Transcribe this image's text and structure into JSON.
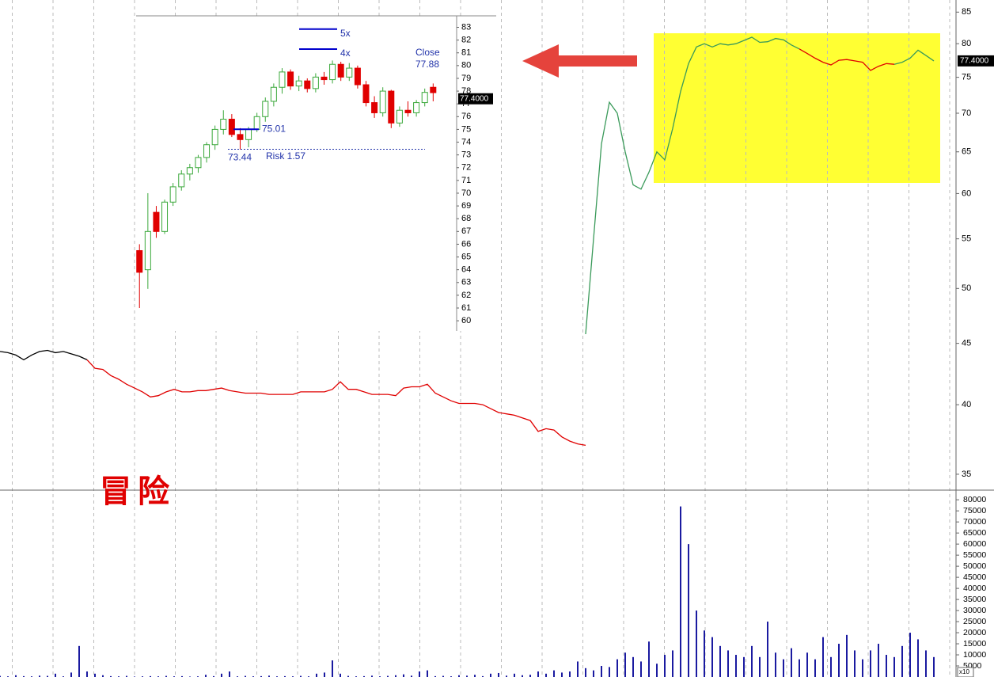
{
  "chart_data": [
    {
      "type": "line",
      "log_scale": true,
      "xlim": [
        0,
        120.8
      ],
      "ylim": [
        34,
        87
      ],
      "yticks": [
        35,
        40,
        45,
        50,
        55,
        60,
        65,
        70,
        75,
        80,
        85
      ],
      "series": [
        {
          "color": "#000000",
          "x": [
            0,
            1,
            2,
            3,
            4,
            5,
            6,
            7,
            8,
            9,
            10,
            11
          ],
          "values": [
            44.3,
            44.2,
            44.0,
            43.6,
            44.0,
            44.3,
            44.4,
            44.2,
            44.3,
            44.1,
            43.9,
            43.6
          ]
        },
        {
          "color": "#e00000",
          "x": [
            11,
            12,
            13,
            14,
            15,
            16,
            17,
            18,
            19,
            20,
            21,
            22,
            23,
            24,
            25,
            26,
            27,
            28,
            29,
            30,
            31,
            32,
            33,
            34,
            35,
            36,
            37,
            38,
            39,
            40,
            41,
            42,
            43,
            44,
            45,
            46,
            47,
            48,
            49,
            50,
            51,
            52,
            53,
            54,
            55,
            56,
            57,
            58,
            59,
            60,
            61,
            62,
            63,
            64,
            65,
            66,
            67,
            68,
            69,
            70,
            71,
            72,
            73,
            74
          ],
          "values": [
            43.6,
            42.9,
            42.8,
            42.3,
            42.0,
            41.6,
            41.3,
            41.0,
            40.6,
            40.7,
            41.0,
            41.2,
            41.0,
            41.0,
            41.1,
            41.1,
            41.2,
            41.3,
            41.1,
            41.0,
            40.9,
            40.9,
            40.9,
            40.8,
            40.8,
            40.8,
            40.8,
            41.0,
            41.0,
            41.0,
            41.0,
            41.2,
            41.8,
            41.2,
            41.2,
            41.0,
            40.8,
            40.8,
            40.8,
            40.7,
            41.3,
            41.4,
            41.4,
            41.6,
            40.9,
            40.6,
            40.3,
            40.1,
            40.1,
            40.1,
            40.0,
            39.7,
            39.4,
            39.3,
            39.2,
            39.0,
            38.8,
            38.0,
            38.2,
            38.1,
            37.6,
            37.3,
            37.1,
            37.0
          ]
        },
        {
          "color": "#3a9a5a",
          "x": [
            74,
            75,
            76,
            77,
            78,
            79,
            80,
            81,
            82,
            83,
            84,
            85,
            86,
            87,
            88,
            89,
            90,
            91,
            92,
            93,
            94,
            95,
            96,
            97,
            98,
            99,
            100,
            101
          ],
          "values": [
            45.8,
            55,
            66,
            71.5,
            70,
            65,
            61,
            60.5,
            62.5,
            65,
            64,
            68,
            73,
            77,
            79.5,
            80,
            79.5,
            80,
            79.8,
            80,
            80.5,
            81,
            80.2,
            80.3,
            80.8,
            80.6,
            79.8,
            79.2
          ]
        },
        {
          "color": "#e00000",
          "x": [
            101,
            102,
            103,
            104,
            105,
            106,
            107,
            108,
            109,
            110,
            111,
            112,
            113
          ],
          "values": [
            79.2,
            78.5,
            77.8,
            77.2,
            76.8,
            77.5,
            77.6,
            77.4,
            77.2,
            76.0,
            76.6,
            77.0,
            76.9
          ]
        },
        {
          "color": "#3a9a5a",
          "x": [
            113,
            114,
            115,
            116,
            117,
            118
          ],
          "values": [
            76.9,
            77.2,
            77.8,
            79.0,
            78.2,
            77.4
          ]
        }
      ],
      "price_label": {
        "value": 77.4,
        "label": "77.4000"
      },
      "watermark": "冒险"
    },
    {
      "type": "bar",
      "color": "#1a1aa0",
      "xlim": [
        0,
        120.8
      ],
      "ylim": [
        0,
        84000
      ],
      "yticks": [
        5000,
        10000,
        15000,
        20000,
        25000,
        30000,
        35000,
        40000,
        45000,
        50000,
        55000,
        60000,
        65000,
        70000,
        75000,
        80000
      ],
      "x": [
        0,
        1,
        2,
        3,
        4,
        5,
        6,
        7,
        8,
        9,
        10,
        11,
        12,
        13,
        14,
        15,
        16,
        17,
        18,
        19,
        20,
        21,
        22,
        23,
        24,
        25,
        26,
        27,
        28,
        29,
        30,
        31,
        32,
        33,
        34,
        35,
        36,
        37,
        38,
        39,
        40,
        41,
        42,
        43,
        44,
        45,
        46,
        47,
        48,
        49,
        50,
        51,
        52,
        53,
        54,
        55,
        56,
        57,
        58,
        59,
        60,
        61,
        62,
        63,
        64,
        65,
        66,
        67,
        68,
        69,
        70,
        71,
        72,
        73,
        74,
        75,
        76,
        77,
        78,
        79,
        80,
        81,
        82,
        83,
        84,
        85,
        86,
        87,
        88,
        89,
        90,
        91,
        92,
        93,
        94,
        95,
        96,
        97,
        98,
        99,
        100,
        101,
        102,
        103,
        104,
        105,
        106,
        107,
        108,
        109,
        110,
        111,
        112,
        113,
        114,
        115,
        116,
        117,
        118
      ],
      "values": [
        500,
        300,
        800,
        400,
        300,
        600,
        500,
        1500,
        300,
        2000,
        14000,
        2500,
        1500,
        800,
        400,
        300,
        500,
        200,
        300,
        400,
        300,
        500,
        300,
        400,
        200,
        300,
        1000,
        400,
        1500,
        2500,
        300,
        500,
        300,
        400,
        600,
        300,
        400,
        300,
        500,
        300,
        1500,
        2000,
        7500,
        1500,
        500,
        300,
        400,
        600,
        300,
        500,
        800,
        1200,
        600,
        2500,
        3000,
        400,
        500,
        300,
        800,
        600,
        1000,
        400,
        1500,
        1800,
        600,
        1500,
        800,
        1000,
        2500,
        1500,
        3000,
        2000,
        2500,
        7000,
        4000,
        3000,
        5000,
        4500,
        8000,
        11000,
        9000,
        7000,
        16000,
        6000,
        10000,
        12000,
        77000,
        60000,
        30000,
        21000,
        18000,
        14000,
        12000,
        10000,
        9000,
        14000,
        9000,
        25000,
        11000,
        8000,
        13000,
        8000,
        11000,
        8000,
        18000,
        9000,
        15000,
        19000,
        12000,
        8000,
        12000,
        15000,
        10000,
        9000,
        14000,
        20000,
        17000,
        12000,
        9000
      ],
      "multiplier_label": "x10"
    },
    {
      "type": "candlestick",
      "xlim": [
        -0.4,
        37.8
      ],
      "ylim": [
        59.2,
        83.9
      ],
      "yticks": [
        60,
        61,
        62,
        63,
        64,
        65,
        66,
        67,
        68,
        69,
        70,
        71,
        72,
        73,
        74,
        75,
        76,
        77,
        78,
        79,
        80,
        81,
        82,
        83
      ],
      "up_color": "#3aa83a",
      "down_color": "#e00000",
      "x": [
        0,
        1,
        2,
        3,
        4,
        5,
        6,
        7,
        8,
        9,
        10,
        11,
        12,
        13,
        14,
        15,
        16,
        17,
        18,
        19,
        20,
        21,
        22,
        23,
        24,
        25,
        26,
        27,
        28,
        29,
        30,
        31,
        32,
        33,
        34,
        35
      ],
      "open": [
        65.5,
        64,
        68.5,
        67,
        69.3,
        70.5,
        71.5,
        72,
        72.8,
        73.8,
        75,
        75.8,
        74.6,
        74.2,
        75,
        76,
        77.2,
        78.3,
        79.5,
        78.4,
        78.8,
        78.2,
        79.1,
        78.9,
        80.1,
        79.1,
        79.8,
        78.5,
        77.1,
        76.3,
        78,
        75.5,
        76.5,
        76.3,
        77.1,
        78.3
      ],
      "high": [
        66,
        70,
        69,
        69.5,
        70.8,
        71.8,
        72.3,
        73,
        74,
        75.3,
        76.5,
        76.2,
        75.1,
        75.2,
        76.3,
        77.5,
        78.6,
        79.8,
        79.7,
        79.2,
        79,
        79.4,
        79.5,
        80.4,
        80.3,
        80.2,
        80,
        78.8,
        77.6,
        78.3,
        78.1,
        76.8,
        77.2,
        77.3,
        78.2,
        78.6
      ],
      "low": [
        61,
        62.5,
        66.5,
        66.8,
        69,
        70.2,
        71,
        71.6,
        72.4,
        73.4,
        74.6,
        74.4,
        73.44,
        73.6,
        74.8,
        75.6,
        76.8,
        77.8,
        78.1,
        78,
        77.9,
        77.9,
        78.5,
        78.6,
        78.8,
        78.8,
        78.2,
        76.8,
        75.9,
        76,
        75.1,
        75.2,
        76,
        76,
        76.8,
        77.2
      ],
      "close": [
        63.8,
        67,
        67,
        69.3,
        70.5,
        71.5,
        72,
        72.8,
        73.8,
        75,
        75.8,
        74.6,
        74.2,
        75.01,
        76,
        77.2,
        78.3,
        79.5,
        78.4,
        78.8,
        78.2,
        79.1,
        78.9,
        80.1,
        79.1,
        79.8,
        78.5,
        77.1,
        76.3,
        78,
        75.5,
        76.5,
        76.3,
        77.1,
        77.9,
        77.88
      ],
      "levels": [
        {
          "value": 82.86,
          "label": "5x"
        },
        {
          "value": 81.29,
          "label": "4x"
        },
        75.01,
        73.44
      ],
      "risk_label": "Risk 1.57",
      "close_label": "Close",
      "close_value": 77.88,
      "price_label": {
        "value": 77.4,
        "label": "77.4000"
      }
    }
  ]
}
